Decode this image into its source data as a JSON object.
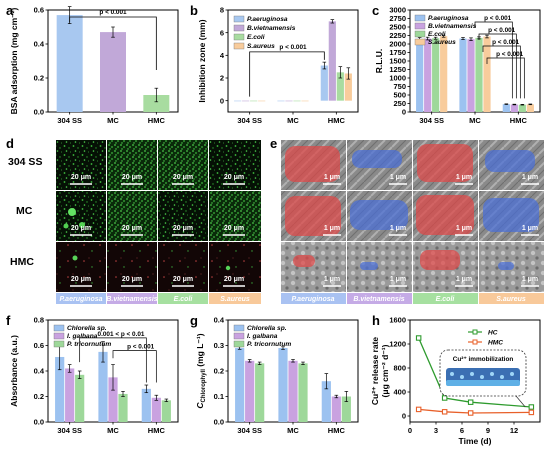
{
  "colors": {
    "blue": "#a8c8f0",
    "purple": "#c1a8d8",
    "green": "#a8dca0",
    "orange": "#f8cc9c",
    "c_blue": "#9cc2f0",
    "c_purple": "#c9a2e0",
    "c_green": "#9ed89a",
    "hc": "#2e9b2e",
    "hmc": "#e8602a",
    "strip_blue": "#a9c2f2",
    "strip_purple": "#c5abe6",
    "strip_green": "#a6e0a0",
    "strip_orange": "#f8c99a"
  },
  "panels": {
    "a": "a",
    "b": "b",
    "c": "c",
    "d": "d",
    "e": "e",
    "f": "f",
    "g": "g",
    "h": "h"
  },
  "chart_data": [
    {
      "id": "a",
      "type": "bar",
      "categories": [
        "304 SS",
        "MC",
        "HMC"
      ],
      "values": [
        0.57,
        0.47,
        0.1
      ],
      "errors": [
        0.05,
        0.03,
        0.04
      ],
      "ylabel": "BSA adsorption (mg cm⁻²)",
      "ylim": [
        0,
        0.6
      ],
      "yticks": [
        "0.0",
        "0.2",
        "0.4",
        "0.6"
      ],
      "annotation": "p < 0.001"
    },
    {
      "id": "b",
      "type": "bar",
      "categories": [
        "304 SS",
        "MC",
        "HMC"
      ],
      "series": [
        {
          "name": "P.aeruginosa",
          "values": [
            0,
            0,
            3.1
          ],
          "errors": [
            0,
            0,
            0.3
          ]
        },
        {
          "name": "B.vietnamensis",
          "values": [
            0,
            0,
            7.0
          ],
          "errors": [
            0,
            0,
            0.15
          ]
        },
        {
          "name": "E.coli",
          "values": [
            0,
            0,
            2.5
          ],
          "errors": [
            0,
            0,
            0.5
          ]
        },
        {
          "name": "S.aureus",
          "values": [
            0,
            0,
            2.4
          ],
          "errors": [
            0,
            0,
            0.5
          ]
        }
      ],
      "ylabel": "Inhibition zone (mm)",
      "ylim": [
        -1,
        8
      ],
      "yticks": [
        "0",
        "2",
        "4",
        "6",
        "8"
      ],
      "annotation": "p < 0.001"
    },
    {
      "id": "c",
      "type": "bar",
      "categories": [
        "304 SS",
        "MC",
        "HMC"
      ],
      "series": [
        {
          "name": "P.aeruginosa",
          "values": [
            2150,
            2160,
            230
          ],
          "errors": [
            40,
            30,
            10
          ]
        },
        {
          "name": "B.vietnamensis",
          "values": [
            2160,
            2140,
            220
          ],
          "errors": [
            40,
            40,
            10
          ]
        },
        {
          "name": "E.coli",
          "values": [
            2170,
            2180,
            215
          ],
          "errors": [
            30,
            30,
            10
          ]
        },
        {
          "name": "S.aureus",
          "values": [
            2230,
            2220,
            225
          ],
          "errors": [
            30,
            40,
            10
          ]
        }
      ],
      "ylabel": "R.L.U.",
      "ylim": [
        0,
        3000
      ],
      "yticks": [
        "0",
        "250",
        "500",
        "750",
        "1000",
        "1250",
        "1500",
        "1750",
        "2000",
        "2250",
        "2500",
        "2750",
        "3000"
      ],
      "annotations": [
        "p < 0.001",
        "p < 0.001",
        "p < 0.001",
        "p < 0.001"
      ]
    },
    {
      "id": "f",
      "type": "bar",
      "categories": [
        "304 SS",
        "MC",
        "HMC"
      ],
      "series": [
        {
          "name": "Chlorella sp.",
          "values": [
            0.51,
            0.55,
            0.26
          ],
          "errors": [
            0.1,
            0.08,
            0.03
          ]
        },
        {
          "name": "I. galbana",
          "values": [
            0.42,
            0.35,
            0.19
          ],
          "errors": [
            0.03,
            0.1,
            0.02
          ]
        },
        {
          "name": "P. tricornutum",
          "values": [
            0.37,
            0.22,
            0.17
          ],
          "errors": [
            0.03,
            0.02,
            0.01
          ]
        }
      ],
      "ylabel": "Absorbance (a.u.)",
      "ylim": [
        0,
        0.8
      ],
      "yticks": [
        "0.0",
        "0.2",
        "0.4",
        "0.6",
        "0.8"
      ],
      "annotations": [
        "0.001 < p < 0.01",
        "p < 0.001"
      ]
    },
    {
      "id": "g",
      "type": "bar",
      "categories": [
        "304 SS",
        "MC",
        "HMC"
      ],
      "series": [
        {
          "name": "Chlorella sp.",
          "values": [
            0.29,
            0.29,
            0.16
          ],
          "errors": [
            0.005,
            0.005,
            0.03
          ]
        },
        {
          "name": "I. galbana",
          "values": [
            0.24,
            0.24,
            0.1
          ],
          "errors": [
            0.005,
            0.005,
            0.005
          ]
        },
        {
          "name": "P. tricornutum",
          "values": [
            0.23,
            0.23,
            0.1
          ],
          "errors": [
            0.005,
            0.005,
            0.02
          ]
        }
      ],
      "ylabel": "C",
      "ylabel_sub": "Chlorophyll",
      "ylabel_unit": " (mg L⁻¹)",
      "ylim": [
        0,
        0.4
      ],
      "yticks": [
        "0.0",
        "0.1",
        "0.2",
        "0.3",
        "0.4"
      ]
    },
    {
      "id": "h",
      "type": "line",
      "x_hc": [
        1,
        4,
        7,
        14
      ],
      "y_hc": [
        1300,
        300,
        230,
        150
      ],
      "x_hmc": [
        1,
        4,
        7,
        14
      ],
      "y_hmc": [
        110,
        70,
        50,
        60
      ],
      "series_names": [
        "HC",
        "HMC"
      ],
      "xlabel": "Time (d)",
      "ylabel": "Cu²⁺ release rate",
      "ylabel2": "(μg cm⁻² d⁻¹)",
      "xlim": [
        0,
        15
      ],
      "ylim": [
        -100,
        1600
      ],
      "xticks": [
        "0",
        "3",
        "6",
        "9",
        "12"
      ],
      "yticks": [
        "0",
        "400",
        "800",
        "1200",
        "1600"
      ],
      "inset_label": "Cu²⁺ immobilization"
    }
  ],
  "micro_d": {
    "rows": [
      "304 SS",
      "MC",
      "HMC"
    ],
    "scale_bar": "20 μm",
    "strips": [
      "P.aeruginosa",
      "B.vietnamensis",
      "E.coli",
      "S.aureus"
    ]
  },
  "micro_e": {
    "scale_bar": "1 μm",
    "strips": [
      "P.aeruginosa",
      "B.vietnamensis",
      "E.coli",
      "S.aureus"
    ]
  }
}
